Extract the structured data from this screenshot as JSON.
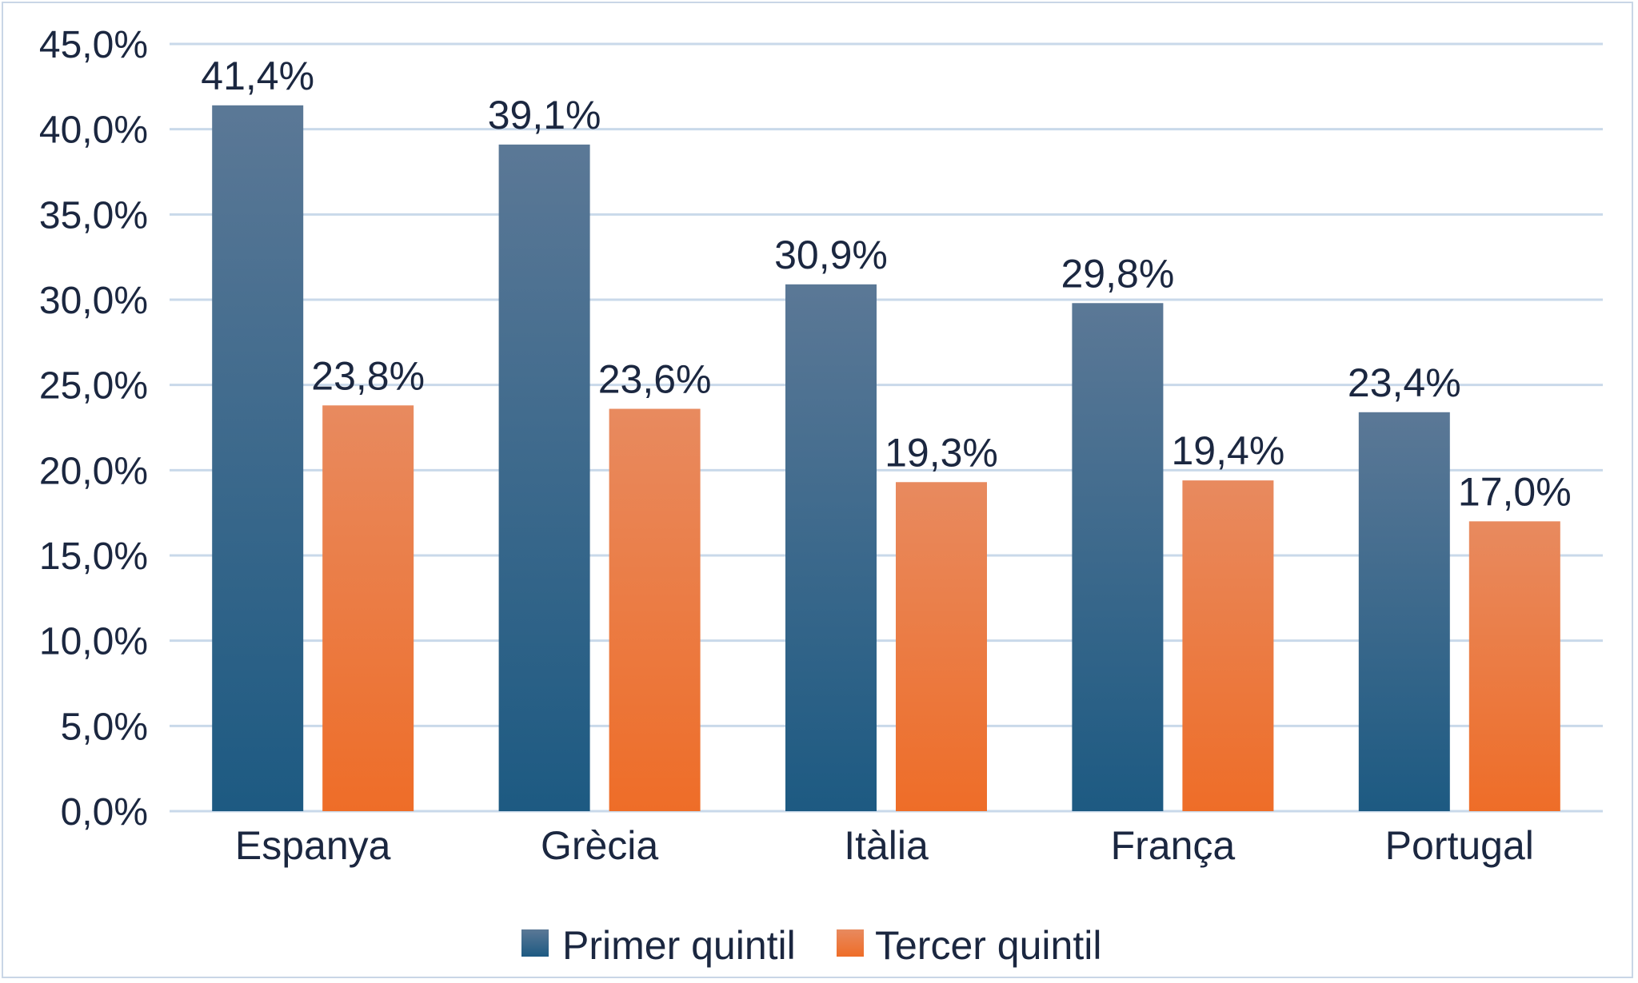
{
  "chart_data": {
    "type": "bar",
    "categories": [
      "Espanya",
      "Grècia",
      "Itàlia",
      "França",
      "Portugal"
    ],
    "series": [
      {
        "name": "Primer quintil",
        "values": [
          41.4,
          39.1,
          30.9,
          29.8,
          23.4
        ],
        "labels": [
          "41,4%",
          "39,1%",
          "30,9%",
          "29,8%",
          "23,4%"
        ],
        "color_top": "#5b7896",
        "color_bottom": "#1d5a82"
      },
      {
        "name": "Tercer quintil",
        "values": [
          23.8,
          23.6,
          19.3,
          19.4,
          17.0
        ],
        "labels": [
          "23,8%",
          "23,6%",
          "19,3%",
          "19,4%",
          "17,0%"
        ],
        "color_top": "#e88a5f",
        "color_bottom": "#ee6d28"
      }
    ],
    "ylim": [
      0,
      45
    ],
    "yticks": [
      0,
      5,
      10,
      15,
      20,
      25,
      30,
      35,
      40,
      45
    ],
    "ytick_labels": [
      "0,0%",
      "5,0%",
      "10,0%",
      "15,0%",
      "20,0%",
      "25,0%",
      "30,0%",
      "35,0%",
      "40,0%",
      "45,0%"
    ],
    "grid": true,
    "legend_position": "bottom",
    "gridline_color": "#c9d9ea",
    "text_color": "#1b2740"
  }
}
